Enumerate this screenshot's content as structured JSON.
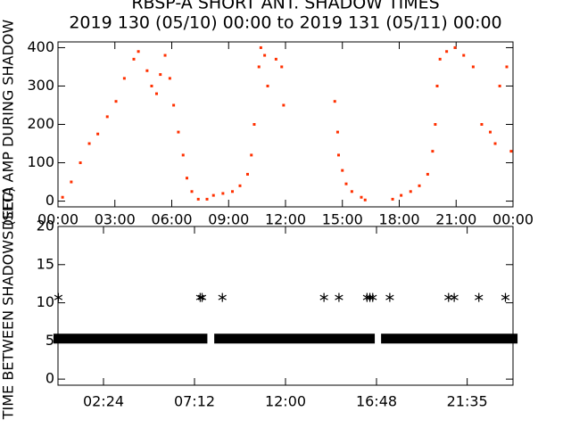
{
  "chart_data": [
    {
      "type": "scatter",
      "title": "RBSP-A SHORT ANT. SHADOW TIMES",
      "subtitle": "2019 130 (05/10) 00:00 to 2019 131 (05/11) 00:00",
      "ylabel": "DELTA AMP DURING SHADOW",
      "xlim": [
        0,
        24
      ],
      "ylim": [
        -15,
        415
      ],
      "xticks": [
        {
          "value": 0,
          "label": "00:00"
        },
        {
          "value": 3,
          "label": "03:00"
        },
        {
          "value": 6,
          "label": "06:00"
        },
        {
          "value": 9,
          "label": "09:00"
        },
        {
          "value": 12,
          "label": "12:00"
        },
        {
          "value": 15,
          "label": "15:00"
        },
        {
          "value": 18,
          "label": "18:00"
        },
        {
          "value": 21,
          "label": "21:00"
        },
        {
          "value": 24,
          "label": "00:00"
        }
      ],
      "yticks": [
        0,
        100,
        200,
        300,
        400
      ],
      "series": [
        {
          "color": "#ff3000",
          "x": [
            0.24,
            0.7,
            1.18,
            1.65,
            2.1,
            2.6,
            3.06,
            3.5,
            4.0,
            4.24,
            4.7,
            4.94,
            5.2,
            5.4,
            5.65,
            5.9,
            6.1,
            6.35,
            6.6,
            6.8,
            7.06,
            7.4,
            7.86,
            8.2,
            8.7,
            9.2,
            9.6,
            10.0,
            10.2,
            10.35,
            10.6,
            10.7,
            10.9,
            11.06,
            11.5,
            11.8,
            11.9,
            14.6,
            14.75,
            14.8,
            15.0,
            15.2,
            15.5,
            16.0,
            16.2,
            17.65,
            18.1,
            18.6,
            19.06,
            19.5,
            19.76,
            19.9,
            20.0,
            20.15,
            20.5,
            20.94,
            21.4,
            21.9,
            22.35,
            22.8,
            23.06,
            23.3,
            23.67,
            23.9
          ],
          "values": [
            10,
            50,
            100,
            150,
            175,
            220,
            260,
            320,
            370,
            390,
            340,
            300,
            280,
            330,
            380,
            320,
            250,
            180,
            120,
            60,
            25,
            5,
            5,
            15,
            20,
            25,
            40,
            70,
            120,
            200,
            350,
            400,
            380,
            300,
            370,
            350,
            250,
            260,
            180,
            120,
            80,
            45,
            25,
            10,
            3,
            5,
            15,
            25,
            40,
            70,
            130,
            200,
            300,
            370,
            390,
            400,
            380,
            350,
            200,
            180,
            150,
            300,
            350,
            130
          ]
        }
      ]
    },
    {
      "type": "scatter",
      "ylabel": "TIME BETWEEN SHADOWS (SEC)",
      "xlim": [
        0,
        24
      ],
      "ylim": [
        -0.8,
        20
      ],
      "xticks": [
        {
          "value": 2.4,
          "label": "02:24"
        },
        {
          "value": 7.2,
          "label": "07:12"
        },
        {
          "value": 12,
          "label": "12:00"
        },
        {
          "value": 16.8,
          "label": "16:48"
        },
        {
          "value": 21.583,
          "label": "21:35"
        }
      ],
      "yticks": [
        0,
        5,
        10,
        15,
        20
      ],
      "series": [
        {
          "color": "#000000",
          "style": "band",
          "x": [
            0.02,
            7.62,
            7.9,
            8.5,
            16.45,
            16.9,
            17.3,
            23.98
          ],
          "values": [
            5.3,
            5.3,
            null,
            5.3,
            5.3,
            null,
            5.3,
            5.3
          ]
        },
        {
          "color": "#000000",
          "style": "asterisk",
          "x": [
            0.02,
            7.5,
            7.6,
            8.67,
            14.03,
            14.82,
            16.3,
            16.45,
            16.6,
            17.5,
            20.6,
            20.9,
            22.2,
            23.6
          ],
          "values": [
            10.7,
            10.7,
            10.7,
            10.7,
            10.7,
            10.7,
            10.7,
            10.7,
            10.7,
            10.7,
            10.7,
            10.7,
            10.7,
            10.7
          ]
        }
      ]
    }
  ]
}
